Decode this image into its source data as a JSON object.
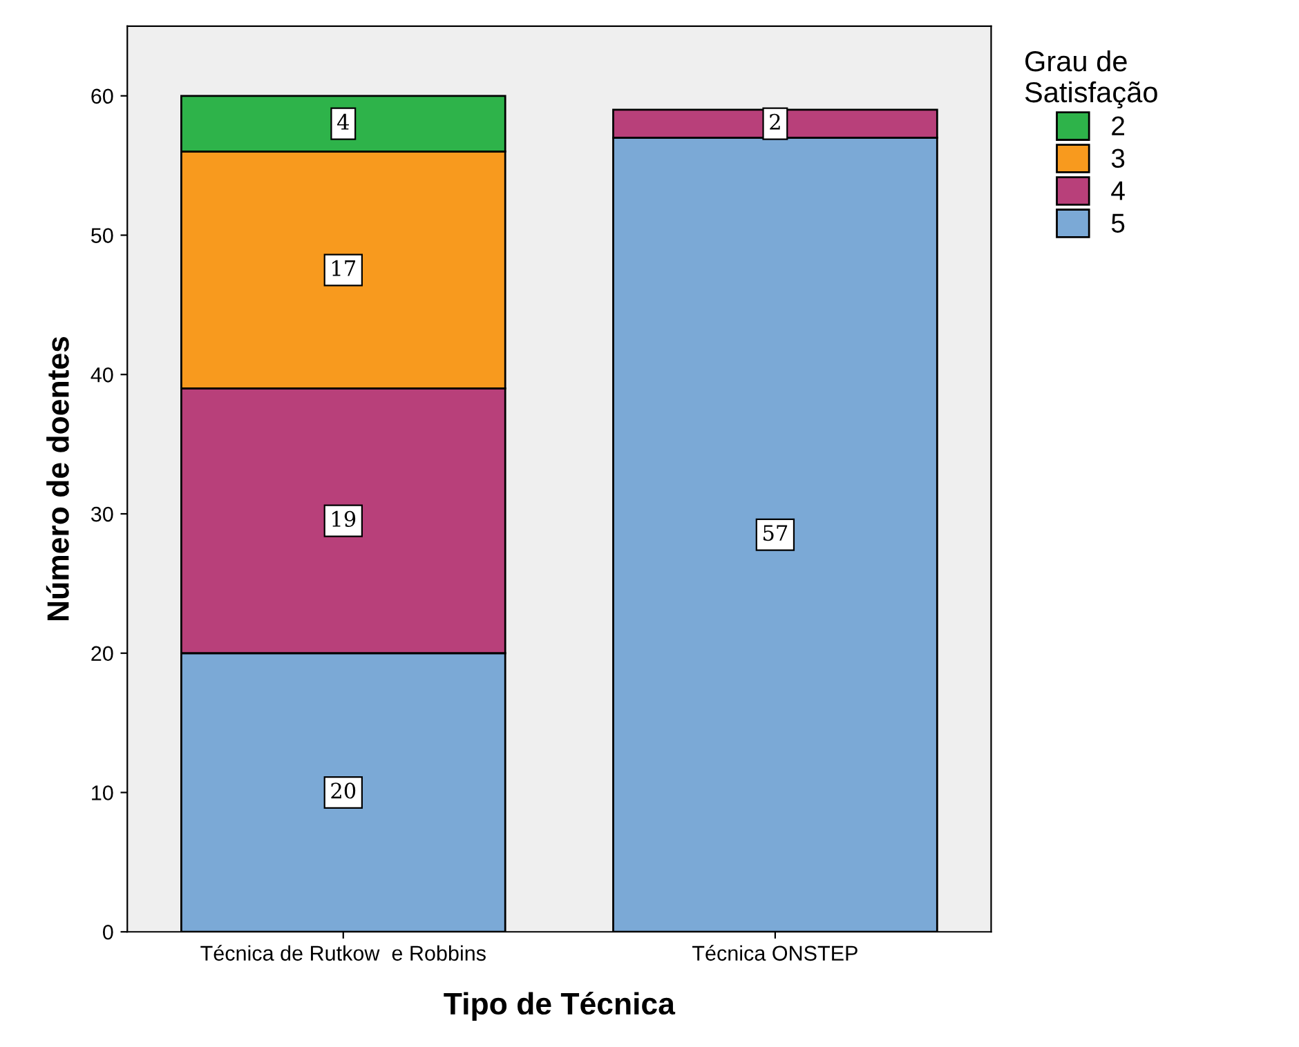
{
  "chart_data": {
    "type": "bar",
    "stacked": true,
    "xlabel": "Tipo de Técnica",
    "ylabel": "Número de doentes",
    "legend_title": "Grau de\nSatisfação",
    "categories": [
      "Técnica de Rutkow  e Robbins",
      "Técnica ONSTEP"
    ],
    "series": [
      {
        "name": "5",
        "color": "#7ba9d6",
        "values": [
          20,
          57
        ]
      },
      {
        "name": "4",
        "color": "#b8407a",
        "values": [
          19,
          2
        ]
      },
      {
        "name": "3",
        "color": "#f89a1e",
        "values": [
          17,
          null
        ]
      },
      {
        "name": "2",
        "color": "#2eb34a",
        "values": [
          4,
          null
        ]
      }
    ],
    "ylim": [
      0,
      65
    ],
    "yticks": [
      0,
      10,
      20,
      30,
      40,
      50,
      60
    ],
    "grid": false,
    "legend": "top right",
    "data_labels": true
  }
}
